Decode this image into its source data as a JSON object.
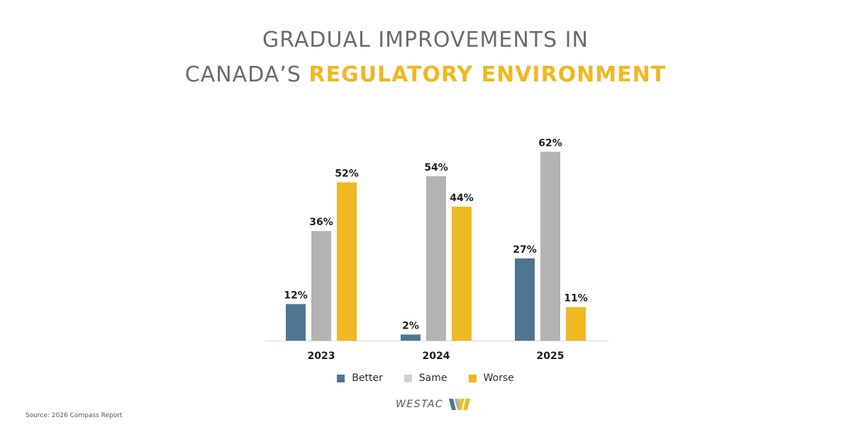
{
  "title": {
    "line1": "GRADUAL IMPROVEMENTS IN",
    "line2_plain": "CANADA’S ",
    "line2_accent": "REGULATORY ENVIRONMENT"
  },
  "legend": {
    "better": "Better",
    "same": "Same",
    "worse": "Worse"
  },
  "source": "Source: 2026 Compass Report",
  "logo": {
    "text": "WESTAC"
  },
  "colors": {
    "better": "#4e7591",
    "same": "#b3b3b3",
    "worse": "#f0b822",
    "title_accent": "#f0b822"
  },
  "chart_data": {
    "type": "bar",
    "categories": [
      "2023",
      "2024",
      "2025"
    ],
    "series": [
      {
        "name": "Better",
        "values": [
          12,
          2,
          27
        ],
        "color": "#4e7591"
      },
      {
        "name": "Same",
        "values": [
          36,
          54,
          62
        ],
        "color": "#b3b3b3"
      },
      {
        "name": "Worse",
        "values": [
          52,
          44,
          11
        ],
        "color": "#f0b822"
      }
    ],
    "value_suffix": "%",
    "ylim": [
      0,
      100
    ],
    "grid": false,
    "legend_position": "bottom"
  }
}
